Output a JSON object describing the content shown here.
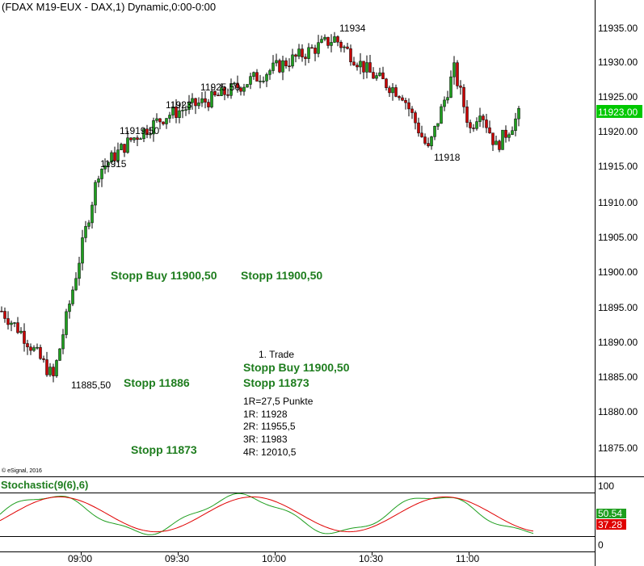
{
  "title": "(FDAX M19-EUX - DAX,1) Dynamic,0:00-0:00",
  "copyright": "© eSignal, 2016",
  "price_axis": {
    "ticks": [
      "11935.00",
      "11930.00",
      "11925.00",
      "11920.00",
      "11915.00",
      "11910.00",
      "11905.00",
      "11900.00",
      "11895.00",
      "11890.00",
      "11885.00",
      "11880.00",
      "11875.00"
    ],
    "current_price": "11923.00",
    "current_price_color": "#00c800"
  },
  "time_axis": {
    "ticks": [
      "09:00",
      "09:30",
      "10:00",
      "10:30",
      "11:00"
    ]
  },
  "annotations": {
    "swing_labels": [
      "11934",
      "11925,50",
      "11923",
      "11919,50",
      "11915",
      "11885,50",
      "11918"
    ],
    "stopp_labels": [
      "Stopp Buy 11900,50",
      "Stopp 11900,50",
      "Stopp 11886",
      "Stopp 11873"
    ],
    "trade_title": "1. Trade",
    "trade_lines": [
      "Stopp Buy 11900,50",
      "Stopp 11873"
    ],
    "targets": [
      "1R=27,5 Punkte",
      "1R: 11928",
      "2R: 11955,5",
      "3R: 11983",
      "4R: 12010,5"
    ]
  },
  "stochastic": {
    "label": "Stochastic(9(6),6)",
    "ticks": [
      "100",
      "0"
    ],
    "k_value": "50.54",
    "d_value": "37.28",
    "k_color": "#1e9e1e",
    "d_color": "#e00000"
  },
  "colors": {
    "up": "#1e9e1e",
    "down": "#c80000",
    "stopp": "#1e7d1e"
  },
  "chart_data": {
    "type": "candlestick",
    "title": "(FDAX M19-EUX - DAX,1) Dynamic,0:00-0:00",
    "x_range": [
      "08:42",
      "11:22"
    ],
    "y_range": [
      11871,
      11937
    ],
    "swings": [
      {
        "time": "08:58",
        "price": 11885.5,
        "label": "11885,50"
      },
      {
        "time": "09:12",
        "price": 11915,
        "label": "11915"
      },
      {
        "time": "09:22",
        "price": 11919.5,
        "label": "11919,50"
      },
      {
        "time": "09:33",
        "price": 11923,
        "label": "11923"
      },
      {
        "time": "09:48",
        "price": 11925.5,
        "label": "11925,50"
      },
      {
        "time": "10:25",
        "price": 11934,
        "label": "11934"
      },
      {
        "time": "10:54",
        "price": 11918,
        "label": "11918"
      }
    ],
    "last_price": 11923.0,
    "stochastic": {
      "name": "Stochastic(9(6),6)",
      "range": [
        0,
        100
      ],
      "k_last": 50.54,
      "d_last": 37.28
    }
  }
}
